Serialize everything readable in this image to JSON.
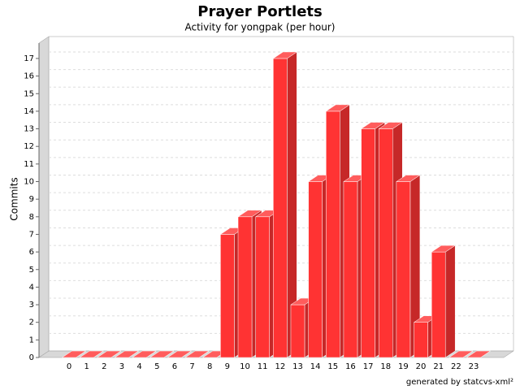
{
  "chart_data": {
    "type": "bar3d",
    "title": "Prayer Portlets",
    "subtitle": "Activity for yongpak (per hour)",
    "y_label": "Commits",
    "footer": "generated by statcvs-xml²",
    "categories": [
      "0",
      "1",
      "2",
      "3",
      "4",
      "5",
      "6",
      "7",
      "8",
      "9",
      "10",
      "11",
      "12",
      "13",
      "14",
      "15",
      "16",
      "17",
      "18",
      "19",
      "20",
      "21",
      "22",
      "23"
    ],
    "values": [
      0,
      0,
      0,
      0,
      0,
      0,
      0,
      0,
      0,
      7,
      8,
      8,
      17,
      3,
      10,
      14,
      10,
      13,
      13,
      10,
      2,
      6,
      0,
      0
    ],
    "color": "#ff3333",
    "ylim": [
      0,
      18
    ],
    "yticks": [
      0,
      1,
      2,
      3,
      4,
      5,
      6,
      7,
      8,
      9,
      10,
      11,
      12,
      13,
      14,
      15,
      16,
      17
    ],
    "grid": true
  }
}
